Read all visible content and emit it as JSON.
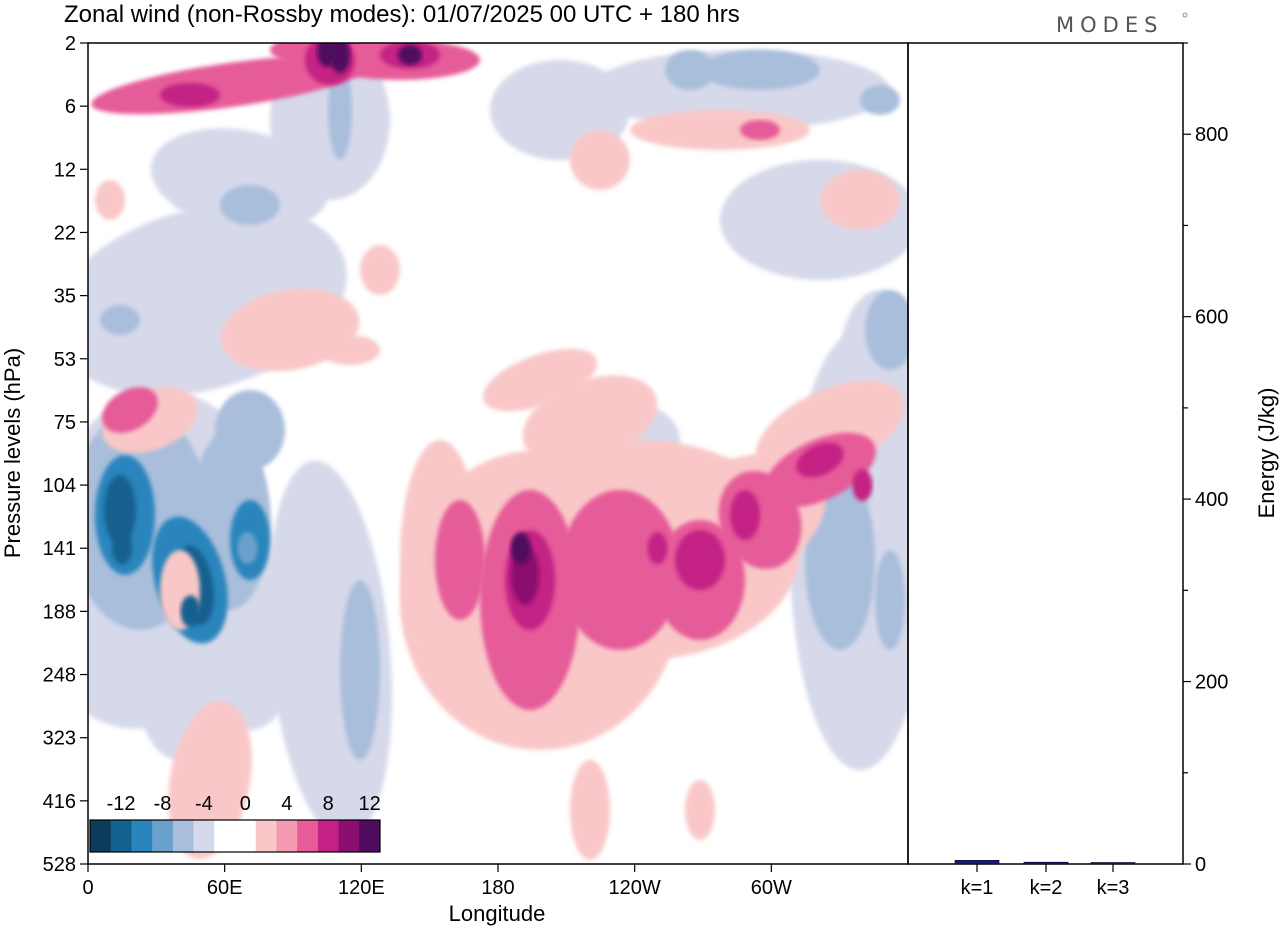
{
  "chart_data": [
    {
      "type": "heatmap",
      "title": "Zonal wind (non-Rossby modes):  01/07/2025  00 UTC  + 180 hrs",
      "xlabel": "Longitude",
      "ylabel": "Pressure levels (hPa)",
      "x_ticks": [
        "0",
        "60E",
        "120E",
        "180",
        "120W",
        "60W"
      ],
      "y_ticks": [
        "2",
        "6",
        "12",
        "22",
        "35",
        "53",
        "75",
        "104",
        "141",
        "188",
        "248",
        "323",
        "416",
        "528"
      ],
      "colorbar": {
        "tick_labels": [
          "-12",
          "-8",
          "-4",
          "0",
          "4",
          "8",
          "12"
        ],
        "colors": [
          "#0d3b5c",
          "#13618f",
          "#2a85bd",
          "#6aa0cc",
          "#a9bedb",
          "#d6d9ea",
          "#ffffff",
          "#ffffff",
          "#f9c7c7",
          "#f59ab3",
          "#e65c99",
          "#c42184",
          "#8b0f6e",
          "#4f0b5e"
        ]
      },
      "features": [
        {
          "kind": "negative",
          "lon": 15,
          "level": "141",
          "value": -12
        },
        {
          "kind": "negative",
          "lon": 45,
          "level": "188",
          "value": -12
        },
        {
          "kind": "negative",
          "lon": 70,
          "level": "141",
          "value": -8
        },
        {
          "kind": "positive",
          "lon": 190,
          "level": "141",
          "value": 12
        },
        {
          "kind": "positive",
          "lon": 250,
          "level": "141",
          "value": 8
        },
        {
          "kind": "positive",
          "lon": 340,
          "level": "104",
          "value": 8
        },
        {
          "kind": "positive",
          "lon": 105,
          "level": "2",
          "value": 16
        }
      ]
    },
    {
      "type": "bar",
      "ylabel": "Energy (J/kg)",
      "ylim": [
        0,
        900
      ],
      "y_ticks": [
        0,
        200,
        400,
        600,
        800
      ],
      "categories": [
        "k=1",
        "k=2",
        "k=3"
      ],
      "values": [
        4,
        2,
        1
      ],
      "bar_colors": [
        "#1a1a8c",
        "#1a1a8c",
        "#1a1a8c"
      ]
    }
  ],
  "brand": "MODES"
}
